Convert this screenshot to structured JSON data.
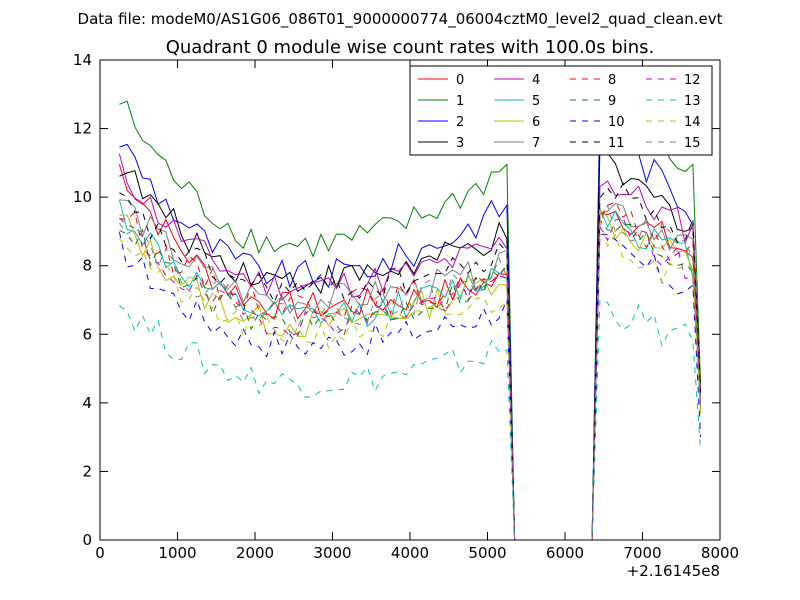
{
  "figure": {
    "suptitle": "Data file: modeM0/AS1G06_086T01_9000000774_06004cztM0_level2_quad_clean.evt",
    "title": "Quadrant 0 module wise count rates with 100.0s bins."
  },
  "chart_data": {
    "type": "line",
    "title": "Quadrant 0 module wise count rates with 100.0s bins.",
    "xlabel": "",
    "ylabel": "",
    "xlim": [
      0,
      8000
    ],
    "ylim": [
      0,
      14
    ],
    "x_offset_label": "+2.16145e8",
    "xticks": [
      0,
      1000,
      2000,
      3000,
      4000,
      5000,
      6000,
      7000,
      8000
    ],
    "yticks": [
      0,
      2,
      4,
      6,
      8,
      10,
      12,
      14
    ],
    "grid": false,
    "legend_position": "top-right",
    "legend_columns": 4,
    "x_start": 250,
    "x_step": 100,
    "gap": {
      "drop_start": 5250,
      "zero_from": 5350,
      "zero_to": 6350,
      "rise_end": 6450
    },
    "x_end": 7750,
    "series": [
      {
        "name": "0",
        "color": "#ff0000",
        "dash": "solid",
        "start": 10.9,
        "min": 6.8,
        "mid_end": 7.6,
        "peak": 9.9,
        "end": 8.3,
        "drop": 3.8
      },
      {
        "name": "1",
        "color": "#008000",
        "dash": "solid",
        "start": 12.8,
        "min": 8.6,
        "mid_end": 10.9,
        "peak": 12.7,
        "end": 10.7,
        "drop": 4.5
      },
      {
        "name": "2",
        "color": "#0000ff",
        "dash": "solid",
        "start": 11.7,
        "min": 7.7,
        "mid_end": 9.8,
        "peak": 12.2,
        "end": 9.6,
        "drop": 4.2
      },
      {
        "name": "3",
        "color": "#000000",
        "dash": "solid",
        "start": 11.0,
        "min": 7.6,
        "mid_end": 8.9,
        "peak": 11.0,
        "end": 9.2,
        "drop": 4.3
      },
      {
        "name": "4",
        "color": "#bf00bf",
        "dash": "solid",
        "start": 10.9,
        "min": 7.4,
        "mid_end": 8.7,
        "peak": 10.6,
        "end": 9.0,
        "drop": 4.2
      },
      {
        "name": "5",
        "color": "#00bfbf",
        "dash": "solid",
        "start": 9.7,
        "min": 6.5,
        "mid_end": 7.9,
        "peak": 9.7,
        "end": 8.1,
        "drop": 3.9
      },
      {
        "name": "6",
        "color": "#bfbf00",
        "dash": "solid",
        "start": 9.4,
        "min": 6.3,
        "mid_end": 7.8,
        "peak": 9.4,
        "end": 8.0,
        "drop": 3.8
      },
      {
        "name": "7",
        "color": "#808080",
        "dash": "solid",
        "start": 10.0,
        "min": 7.0,
        "mid_end": 8.0,
        "peak": 10.0,
        "end": 8.6,
        "drop": 4.0
      },
      {
        "name": "8",
        "color": "#ff0000",
        "dash": "dashed",
        "start": 9.6,
        "min": 6.9,
        "mid_end": 7.6,
        "peak": 9.6,
        "end": 8.2,
        "drop": 3.8
      },
      {
        "name": "9",
        "color": "#008000",
        "dash": "dashed",
        "start": 9.4,
        "min": 6.3,
        "mid_end": 7.8,
        "peak": 9.3,
        "end": 8.0,
        "drop": 3.8
      },
      {
        "name": "10",
        "color": "#0000ff",
        "dash": "dashed",
        "start": 8.6,
        "min": 5.7,
        "mid_end": 6.8,
        "peak": 8.6,
        "end": 7.3,
        "drop": 3.0
      },
      {
        "name": "11",
        "color": "#000000",
        "dash": "dashed",
        "start": 9.9,
        "min": 7.3,
        "mid_end": 8.3,
        "peak": 10.4,
        "end": 8.9,
        "drop": 4.3
      },
      {
        "name": "12",
        "color": "#bf00bf",
        "dash": "dashed",
        "start": 9.3,
        "min": 6.4,
        "mid_end": 7.6,
        "peak": 9.3,
        "end": 7.9,
        "drop": 3.9
      },
      {
        "name": "13",
        "color": "#00bfbf",
        "dash": "dashed",
        "start": 6.9,
        "min": 4.6,
        "mid_end": 5.6,
        "peak": 6.9,
        "end": 5.7,
        "drop": 2.6
      },
      {
        "name": "14",
        "color": "#bfbf00",
        "dash": "dashed",
        "start": 9.0,
        "min": 6.0,
        "mid_end": 7.1,
        "peak": 9.0,
        "end": 7.5,
        "drop": 3.6
      },
      {
        "name": "15",
        "color": "#808080",
        "dash": "dashed",
        "start": 9.6,
        "min": 6.6,
        "mid_end": 7.9,
        "peak": 9.6,
        "end": 8.4,
        "drop": 3.9
      }
    ]
  }
}
